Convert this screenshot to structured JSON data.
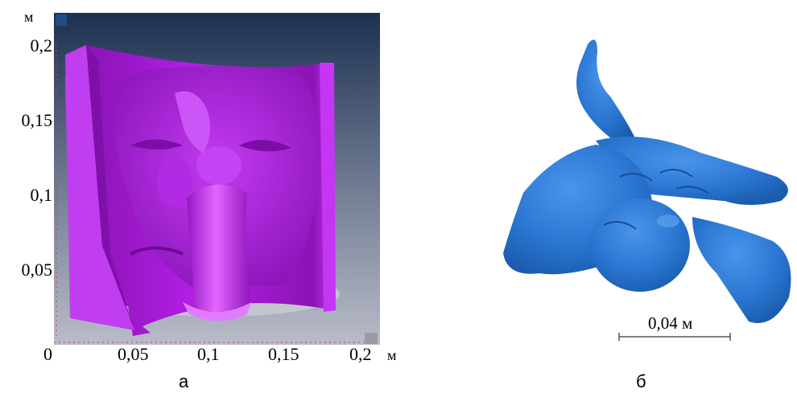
{
  "panel_a": {
    "y_unit": "м",
    "y_ticks": [
      "0,2",
      "0,15",
      "0,1",
      "0,05",
      "0"
    ],
    "x_ticks": [
      "0,05",
      "0,1",
      "0,15",
      "0,2"
    ],
    "x_unit": "м",
    "caption": "а",
    "bg_top": "#1c3150",
    "bg_bottom": "#b9bcc8",
    "surface_color": "#b21fe6"
  },
  "panel_b": {
    "scale_label": "0,04 м",
    "caption": "б",
    "surface_color": "#2a76d2"
  }
}
